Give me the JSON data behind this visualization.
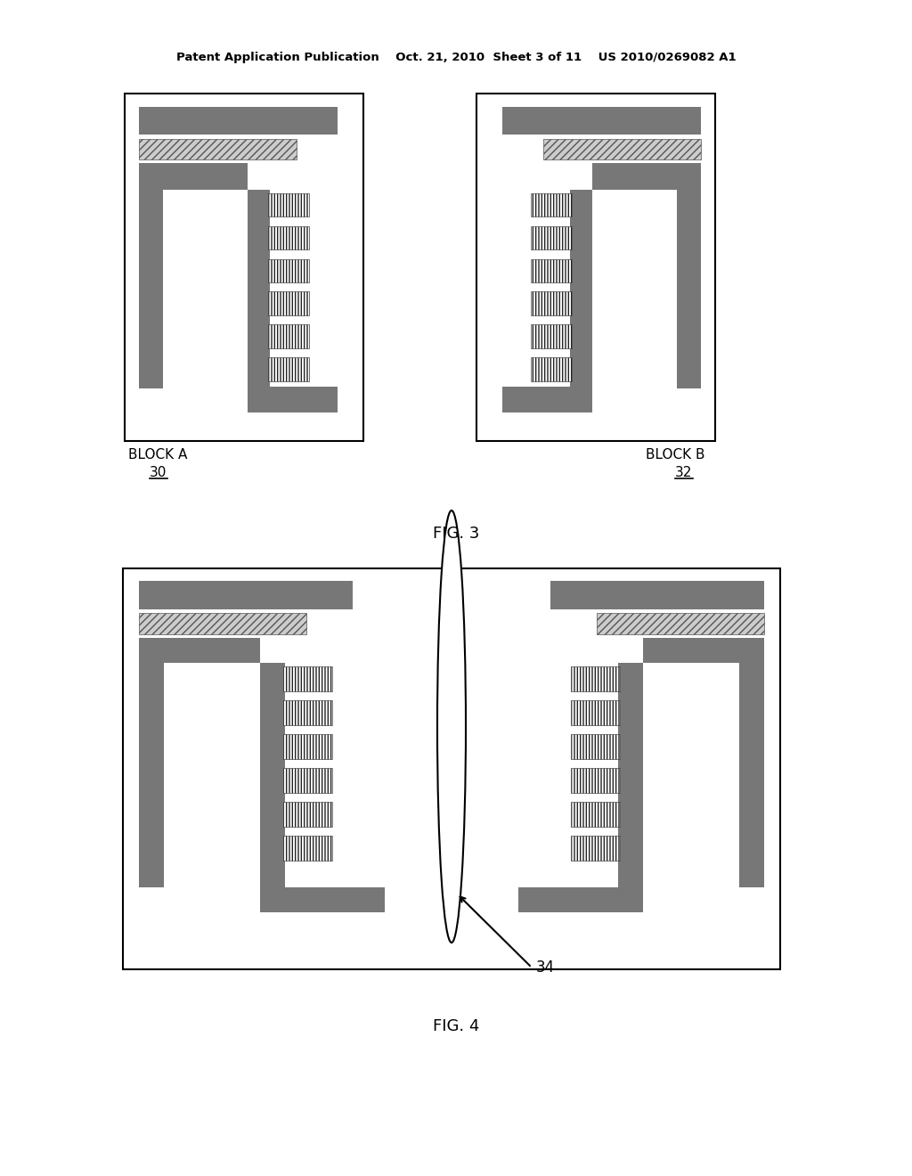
{
  "bg_color": "#ffffff",
  "header_text": "Patent Application Publication    Oct. 21, 2010  Sheet 3 of 11    US 2010/0269082 A1",
  "fig3_label": "FIG. 3",
  "fig4_label": "FIG. 4",
  "block_a_label": "BLOCK A",
  "block_a_num": "30",
  "block_b_label": "BLOCK B",
  "block_b_num": "32",
  "arrow_label": "34",
  "gray_dark": "#777777"
}
